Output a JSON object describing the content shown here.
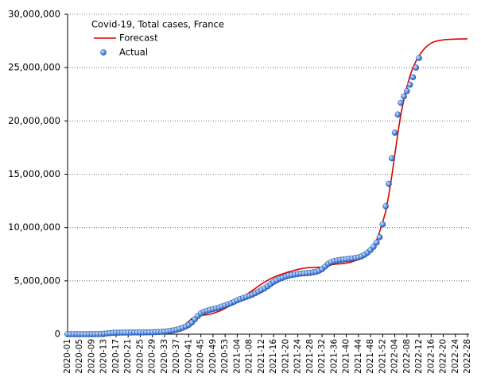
{
  "chart_data": {
    "type": "line",
    "legend_title": "Covid-19, Total cases, France",
    "legend": "upper left",
    "grid": true,
    "ylim": [
      0,
      30000000
    ],
    "yticks": [
      0,
      {
        "value": 5000000,
        "label": "5,000,000"
      },
      {
        "value": 10000000,
        "label": "10,000,000"
      },
      {
        "value": 15000000,
        "label": "15,000,000"
      },
      {
        "value": 20000000,
        "label": "20,000,000"
      },
      {
        "value": 25000000,
        "label": "25,000,000"
      },
      {
        "value": 30000000,
        "label": "30,000,000"
      }
    ],
    "categories": [
      "2020-01",
      null,
      null,
      null,
      "2020-05",
      null,
      null,
      null,
      "2020-09",
      null,
      null,
      null,
      "2020-13",
      null,
      null,
      null,
      "2020-17",
      null,
      null,
      null,
      "2020-21",
      null,
      null,
      null,
      "2020-25",
      null,
      null,
      null,
      "2020-29",
      null,
      null,
      null,
      "2020-33",
      null,
      null,
      null,
      "2020-37",
      null,
      null,
      null,
      "2020-41",
      null,
      null,
      null,
      "2020-45",
      null,
      null,
      null,
      "2020-49",
      null,
      null,
      null,
      "2020-53",
      null,
      null,
      null,
      "2021-04",
      null,
      null,
      null,
      "2021-08",
      null,
      null,
      null,
      "2021-12",
      null,
      null,
      null,
      "2021-16",
      null,
      null,
      null,
      "2021-20",
      null,
      null,
      null,
      "2021-24",
      null,
      null,
      null,
      "2021-28",
      null,
      null,
      null,
      "2021-32",
      null,
      null,
      null,
      "2021-36",
      null,
      null,
      null,
      "2021-40",
      null,
      null,
      null,
      "2021-44",
      null,
      null,
      null,
      "2021-48",
      null,
      null,
      null,
      "2021-52",
      null,
      null,
      null,
      "2022-04",
      null,
      null,
      null,
      "2022-08",
      null,
      null,
      null,
      "2022-12",
      null,
      null,
      null,
      "2022-16",
      null,
      null,
      null,
      "2022-20",
      null,
      null,
      null,
      "2022-24",
      null,
      null,
      null,
      "2022-28"
    ],
    "series": [
      {
        "name": "Forecast",
        "style": "line",
        "color": "#dd0000",
        "values": [
          0,
          0,
          0,
          0,
          0,
          0,
          0,
          0,
          0,
          0,
          10000,
          30000,
          60000,
          90000,
          110000,
          130000,
          140000,
          150000,
          155000,
          160000,
          160000,
          165000,
          170000,
          170000,
          175000,
          180000,
          185000,
          190000,
          200000,
          210000,
          220000,
          240000,
          270000,
          310000,
          360000,
          420000,
          500000,
          600000,
          750000,
          950000,
          1200000,
          1450000,
          1650000,
          1750000,
          1800000,
          1800000,
          1820000,
          1870000,
          1950000,
          2050000,
          2150000,
          2280000,
          2420000,
          2580000,
          2750000,
          2920000,
          3100000,
          3300000,
          3500000,
          3700000,
          3900000,
          4100000,
          4300000,
          4500000,
          4700000,
          4880000,
          5050000,
          5200000,
          5330000,
          5450000,
          5560000,
          5660000,
          5750000,
          5840000,
          5920000,
          6000000,
          6070000,
          6130000,
          6180000,
          6220000,
          6250000,
          6270000,
          6280000,
          6280000,
          6270000,
          6300000,
          6400000,
          6500000,
          6550000,
          6580000,
          6600000,
          6630000,
          6670000,
          6720000,
          6800000,
          6900000,
          7000000,
          7120000,
          7300000,
          7550000,
          7900000,
          8400000,
          8800000,
          9600000,
          10500000,
          11500000,
          13000000,
          14800000,
          16800000,
          18800000,
          20600000,
          22000000,
          23200000,
          24200000,
          25000000,
          25600000,
          26100000,
          26500000,
          26850000,
          27100000,
          27300000,
          27420000,
          27500000,
          27560000,
          27600000,
          27630000,
          27650000,
          27660000,
          27670000,
          27680000,
          27690000,
          27690000,
          27700000
        ]
      },
      {
        "name": "Actual",
        "style": "dots",
        "color": "#1a5fd0",
        "values": [
          0,
          0,
          0,
          0,
          0,
          0,
          0,
          0,
          0,
          1000,
          5000,
          15000,
          40000,
          70000,
          100000,
          120000,
          130000,
          140000,
          145000,
          150000,
          152000,
          155000,
          158000,
          160000,
          163000,
          166000,
          170000,
          175000,
          180000,
          190000,
          200000,
          215000,
          240000,
          270000,
          310000,
          360000,
          420000,
          500000,
          600000,
          720000,
          880000,
          1100000,
          1400000,
          1700000,
          1950000,
          2100000,
          2200000,
          2280000,
          2350000,
          2420000,
          2500000,
          2600000,
          2700000,
          2800000,
          2920000,
          3050000,
          3180000,
          3300000,
          3400000,
          3500000,
          3600000,
          3720000,
          3850000,
          4000000,
          4150000,
          4300000,
          4500000,
          4700000,
          4900000,
          5050000,
          5200000,
          5300000,
          5400000,
          5500000,
          5550000,
          5600000,
          5650000,
          5680000,
          5700000,
          5720000,
          5750000,
          5800000,
          5850000,
          5950000,
          6100000,
          6350000,
          6600000,
          6750000,
          6850000,
          6920000,
          6970000,
          7000000,
          7030000,
          7060000,
          7100000,
          7150000,
          7200000,
          7300000,
          7450000,
          7650000,
          7900000,
          8200000,
          8600000,
          9100000,
          10300000,
          12000000,
          14100000,
          16500000,
          18900000,
          20600000,
          21700000,
          22300000,
          22800000,
          23400000,
          24100000,
          25000000,
          25900000,
          null,
          null,
          null,
          null,
          null,
          null,
          null,
          null,
          null,
          null,
          null,
          null,
          null,
          null,
          null,
          null
        ]
      }
    ]
  }
}
